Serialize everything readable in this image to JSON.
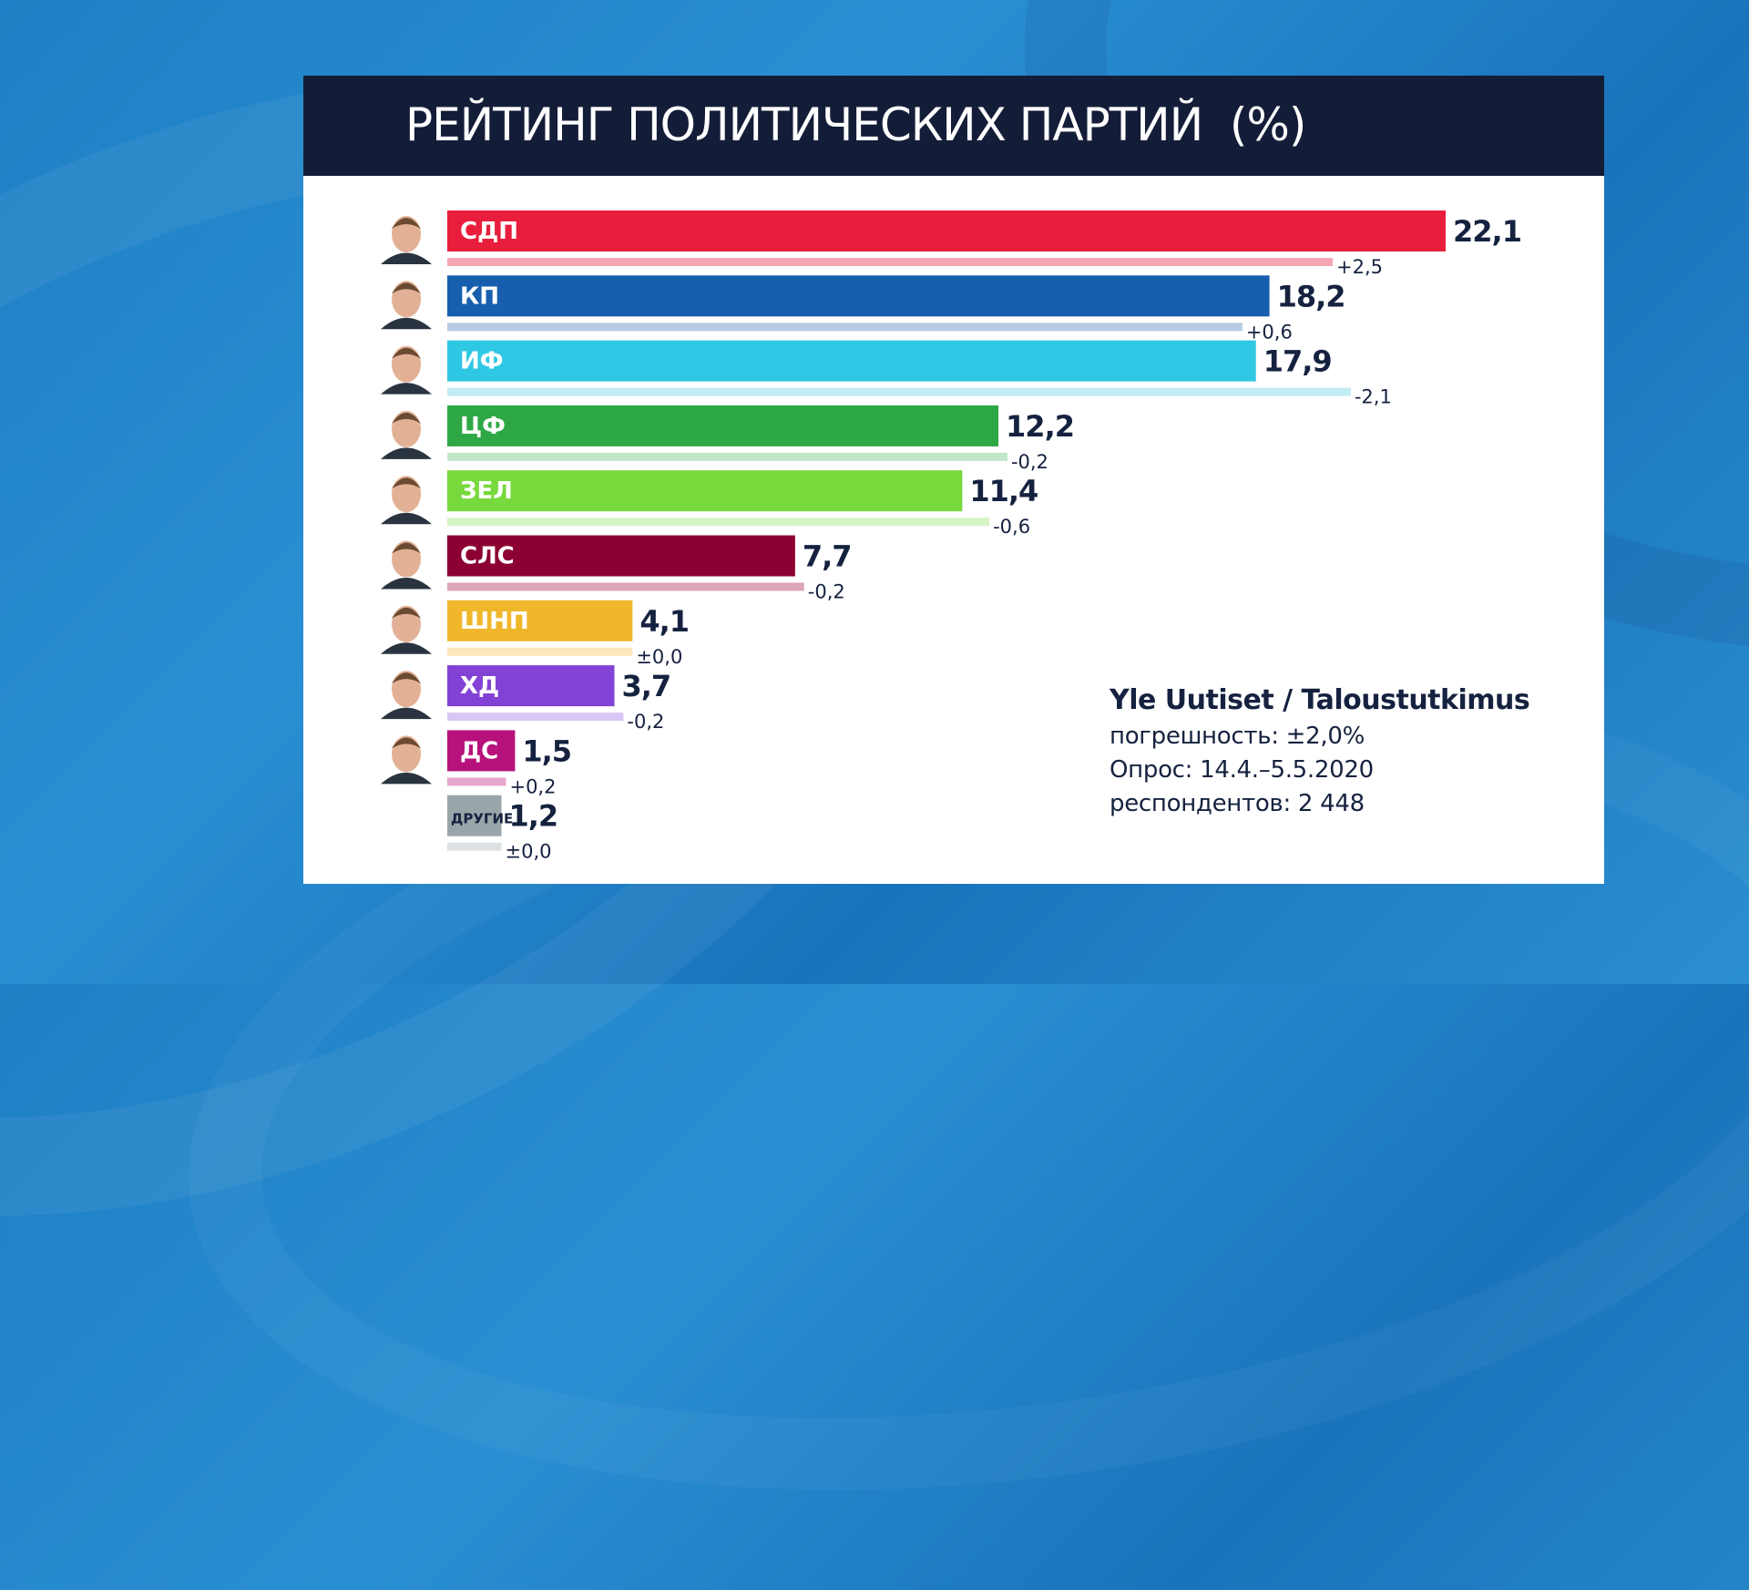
{
  "title": "РЕЙТИНГ ПОЛИТИЧЕСКИХ ПАРТИЙ  (%)",
  "source": {
    "name": "Yle Uutiset / Taloustutkimus",
    "margin": "погрешность:  ±2,0%",
    "period": "Опрос: 14.4.–5.5.2020",
    "respondents": "респондентов: 2 448"
  },
  "chart_data": {
    "type": "bar",
    "orientation": "horizontal",
    "title": "РЕЙТИНГ ПОЛИТИЧЕСКИХ ПАРТИЙ  (%)",
    "categories": [
      "СДП",
      "КП",
      "ИФ",
      "ЦФ",
      "ЗЕЛ",
      "СЛС",
      "ШНП",
      "ХД",
      "ДС",
      "ДРУГИЕ"
    ],
    "values": [
      22.1,
      18.2,
      17.9,
      12.2,
      11.4,
      7.7,
      4.1,
      3.7,
      1.5,
      1.2
    ],
    "value_labels": [
      "22,1",
      "18,2",
      "17,9",
      "12,2",
      "11,4",
      "7,7",
      "4,1",
      "3,7",
      "1,5",
      "1,2"
    ],
    "changes": [
      2.5,
      0.6,
      -2.1,
      -0.2,
      -0.6,
      -0.2,
      0.0,
      -0.2,
      0.2,
      0.0
    ],
    "change_labels": [
      "+2,5",
      "+0,6",
      "-2,1",
      "-0,2",
      "-0,6",
      "-0,2",
      "±0,0",
      "-0,2",
      "+0,2",
      "±0,0"
    ],
    "previous_values": [
      19.6,
      17.6,
      20.0,
      12.4,
      12.0,
      7.9,
      4.1,
      3.9,
      1.3,
      1.2
    ],
    "colors": [
      "#e81e3c",
      "#175fae",
      "#2fc8e4",
      "#2ea845",
      "#77d93c",
      "#8c0033",
      "#f0b72c",
      "#8342d6",
      "#b7127b",
      "#9aa5aa"
    ],
    "prev_colors": [
      "#f4a8b4",
      "#b6cbe2",
      "#c1ecf4",
      "#c2e6c8",
      "#d7f4c4",
      "#dca5b8",
      "#f9e6bb",
      "#d9c6f4",
      "#e7a6cd",
      "#dde2e4"
    ],
    "label_colors": [
      "#ffffff",
      "#ffffff",
      "#ffffff",
      "#ffffff",
      "#ffffff",
      "#ffffff",
      "#ffffff",
      "#ffffff",
      "#ffffff",
      "#15223f"
    ],
    "has_photo": [
      true,
      true,
      true,
      true,
      true,
      true,
      true,
      true,
      true,
      false
    ],
    "xlim": [
      0,
      22.1
    ],
    "grid": false,
    "legend": "none"
  }
}
